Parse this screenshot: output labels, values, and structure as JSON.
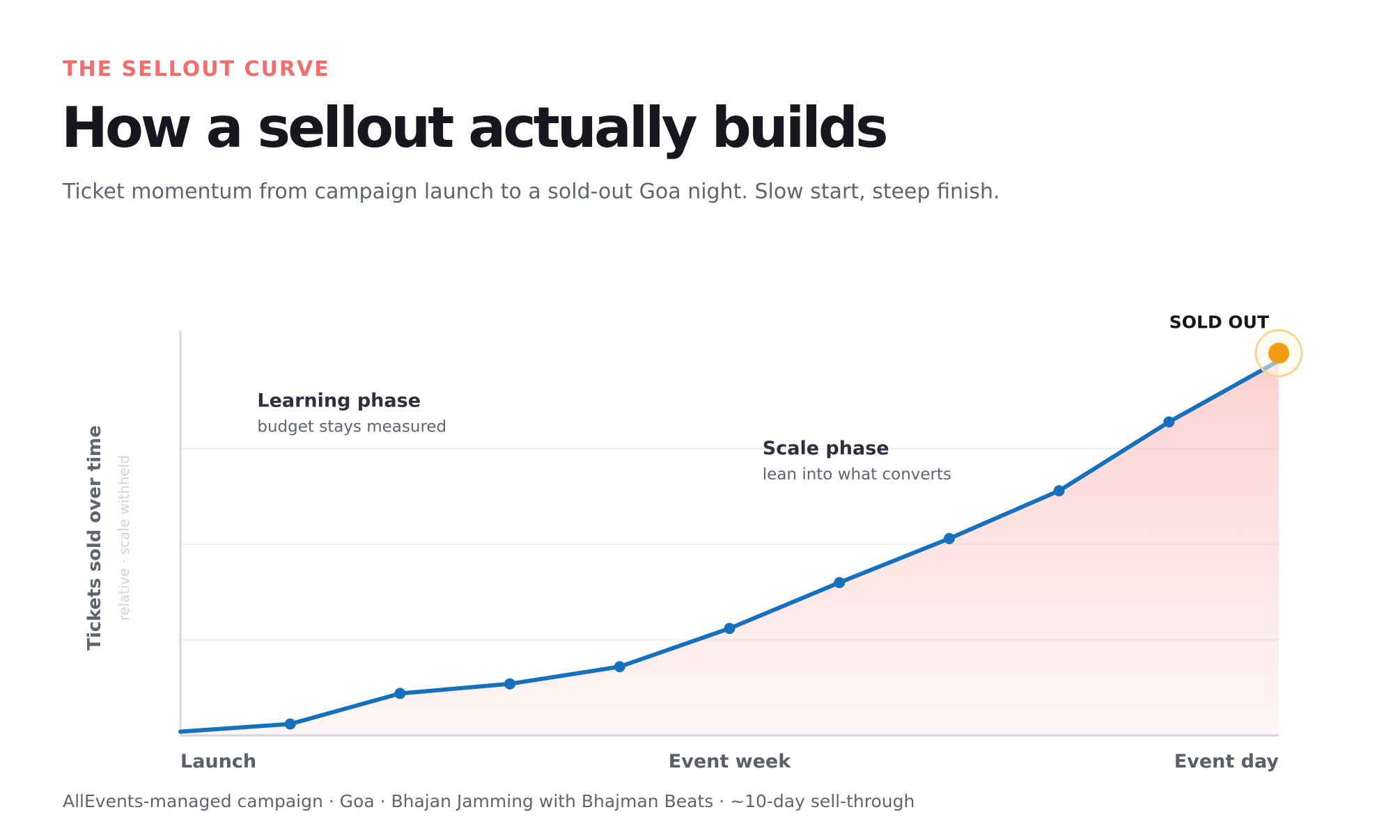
{
  "header": {
    "eyebrow": "THE SELLOUT CURVE",
    "title": "How a sellout actually builds",
    "subtitle": "Ticket momentum from campaign launch to a sold-out Goa night. Slow start, steep finish."
  },
  "footer": {
    "note": "AllEvents-managed campaign · Goa · Bhajan Jamming with Bhajman Beats · ~10-day sell-through"
  },
  "chart_data": {
    "type": "area",
    "title": "",
    "xlabel": "",
    "ylabel": "Tickets sold over time",
    "ylabel_note": "relative · scale withheld",
    "x": [
      0,
      1,
      2,
      3,
      4,
      5,
      6,
      7,
      8,
      9,
      10
    ],
    "values": [
      1,
      3,
      11,
      13.5,
      18,
      28,
      40,
      51.5,
      64,
      82,
      98
    ],
    "ylim": [
      0,
      105
    ],
    "xlim": [
      0,
      10
    ],
    "x_ticks": [
      {
        "x": 0,
        "label": "Launch"
      },
      {
        "x": 5,
        "label": "Event week"
      },
      {
        "x": 10,
        "label": "Event day"
      }
    ],
    "gridlines_y": [
      25,
      50,
      75
    ],
    "grid": true,
    "annotations": [
      {
        "title": "Learning phase",
        "subtitle": "budget stays measured",
        "x": 0.7,
        "y": 86
      },
      {
        "title": "Scale phase",
        "subtitle": "lean into what converts",
        "x": 5.3,
        "y": 73.5
      }
    ],
    "highlight": {
      "label": "SOLD OUT",
      "x": 10,
      "y": 100
    },
    "colors": {
      "line": "#1570bd",
      "area": "#fbb8b8",
      "highlight": "#f39c12",
      "highlight_halo": "#f6d493",
      "grid": "#eceef2",
      "axis": "#d3d6dd"
    }
  }
}
